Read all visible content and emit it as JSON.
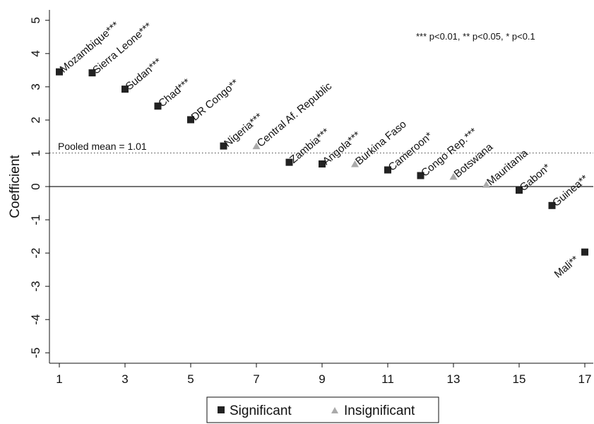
{
  "chart_data": {
    "type": "scatter",
    "ylabel": "Coefficient",
    "xlim": [
      1,
      17
    ],
    "ylim": [
      -5,
      5
    ],
    "x_ticks": [
      "1",
      "3",
      "5",
      "7",
      "9",
      "11",
      "13",
      "15",
      "17"
    ],
    "y_ticks": [
      "5",
      "4",
      "3",
      "2",
      "1",
      "0",
      "-1",
      "-2",
      "-3",
      "-4",
      "-5"
    ],
    "annotation": "*** p<0.01, ** p<0.05, * p<0.1",
    "reference_line": {
      "label": "Pooled mean = 1.01",
      "y": 1.01,
      "style": "dotted"
    },
    "zero_line": 0,
    "legend": {
      "position": "bottom",
      "entries": [
        {
          "label": "Significant",
          "marker": "square",
          "color": "#222222"
        },
        {
          "label": "Insignificant",
          "marker": "triangle",
          "color": "#aaaaaa"
        }
      ]
    },
    "series": [
      {
        "name": "Significant",
        "color": "#222222",
        "marker": "square",
        "points": [
          {
            "x": 1,
            "y": 3.45,
            "label": "Mozambique***"
          },
          {
            "x": 2,
            "y": 3.42,
            "label": "Sierra Leone***"
          },
          {
            "x": 3,
            "y": 2.93,
            "label": "Sudan***"
          },
          {
            "x": 4,
            "y": 2.42,
            "label": "Chad***"
          },
          {
            "x": 5,
            "y": 2.01,
            "label": "DR Congo**"
          },
          {
            "x": 6,
            "y": 1.22,
            "label": "Nigeria***"
          },
          {
            "x": 8,
            "y": 0.73,
            "label": "Zambia***"
          },
          {
            "x": 9,
            "y": 0.68,
            "label": "Angola***"
          },
          {
            "x": 11,
            "y": 0.5,
            "label": "Cameroon*"
          },
          {
            "x": 12,
            "y": 0.33,
            "label": "Congo Rep.***"
          },
          {
            "x": 15,
            "y": -0.11,
            "label": "Gabon*"
          },
          {
            "x": 16,
            "y": -0.57,
            "label": "Guinea**"
          },
          {
            "x": 17,
            "y": -1.97,
            "label": "Mali**",
            "label_side": "below"
          }
        ]
      },
      {
        "name": "Insignificant",
        "color": "#aaaaaa",
        "marker": "triangle",
        "points": [
          {
            "x": 7,
            "y": 1.22,
            "label": "Central Af. Republic"
          },
          {
            "x": 10,
            "y": 0.68,
            "label": "Burkina Faso"
          },
          {
            "x": 13,
            "y": 0.3,
            "label": "Botswana"
          },
          {
            "x": 14,
            "y": 0.06,
            "label": "Mauritania"
          }
        ]
      }
    ]
  }
}
